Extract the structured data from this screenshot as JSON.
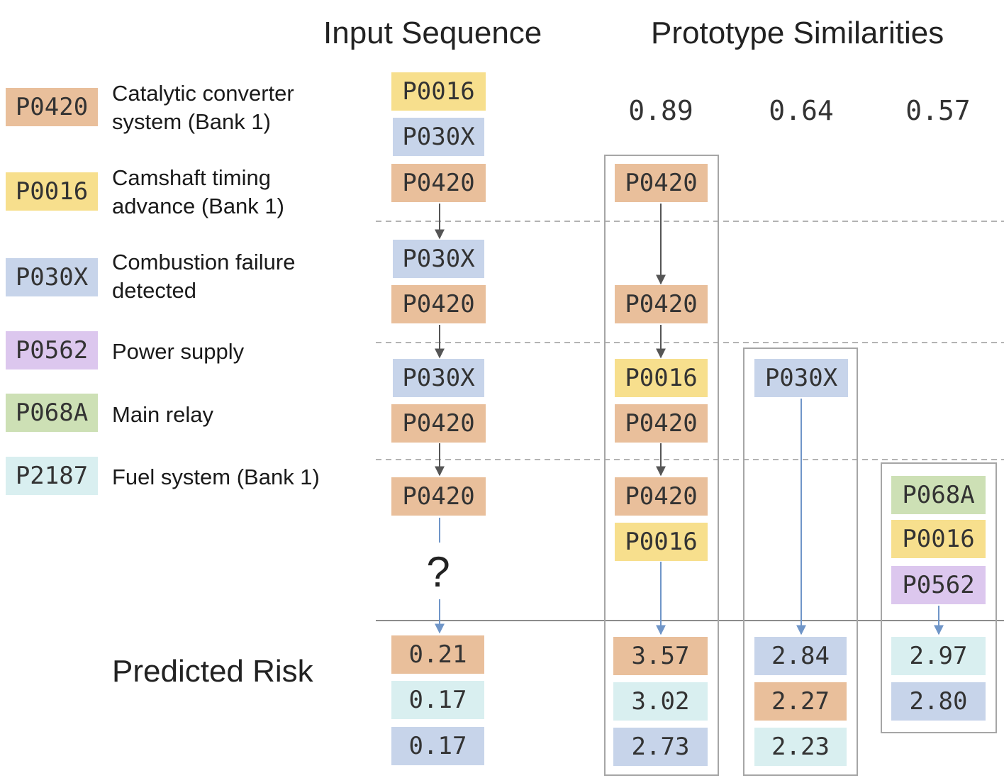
{
  "headings": {
    "input_sequence": "Input Sequence",
    "prototype_similarities": "Prototype Similarities",
    "predicted_risk": "Predicted Risk"
  },
  "legend": [
    {
      "code": "P0420",
      "label": "Catalytic converter system (Bank 1)",
      "color": "#e9bf9b"
    },
    {
      "code": "P0016",
      "label": "Camshaft timing advance (Bank 1)",
      "color": "#f7df8d"
    },
    {
      "code": "P030X",
      "label": "Combustion failure detected",
      "color": "#c7d4ea"
    },
    {
      "code": "P0562",
      "label": "Power supply",
      "color": "#dcc7ee"
    },
    {
      "code": "P068A",
      "label": "Main relay",
      "color": "#cde0b5"
    },
    {
      "code": "P2187",
      "label": "Fuel system (Bank 1)",
      "color": "#d9eff0"
    }
  ],
  "input_sequence": [
    [
      "P0016",
      "P030X",
      "P0420"
    ],
    [
      "P030X",
      "P0420"
    ],
    [
      "P030X",
      "P0420"
    ],
    [
      "P0420"
    ]
  ],
  "unknown_next": "?",
  "input_risk": [
    {
      "value": "0.21",
      "code": "P0420"
    },
    {
      "value": "0.17",
      "code": "P2187"
    },
    {
      "value": "0.17",
      "code": "P030X"
    }
  ],
  "prototypes": [
    {
      "similarity": "0.89",
      "codes": [
        "P0420",
        "P0420",
        "P0016",
        "P0420",
        "P0420",
        "P0016"
      ],
      "risk": [
        {
          "value": "3.57",
          "code": "P0420"
        },
        {
          "value": "3.02",
          "code": "P2187"
        },
        {
          "value": "2.73",
          "code": "P030X"
        }
      ]
    },
    {
      "similarity": "0.64",
      "codes": [
        "P030X"
      ],
      "risk": [
        {
          "value": "2.84",
          "code": "P030X"
        },
        {
          "value": "2.27",
          "code": "P0420"
        },
        {
          "value": "2.23",
          "code": "P2187"
        }
      ]
    },
    {
      "similarity": "0.57",
      "codes": [
        "P068A",
        "P0016",
        "P0562"
      ],
      "risk": [
        {
          "value": "2.97",
          "code": "P2187"
        },
        {
          "value": "2.80",
          "code": "P030X"
        }
      ]
    }
  ]
}
